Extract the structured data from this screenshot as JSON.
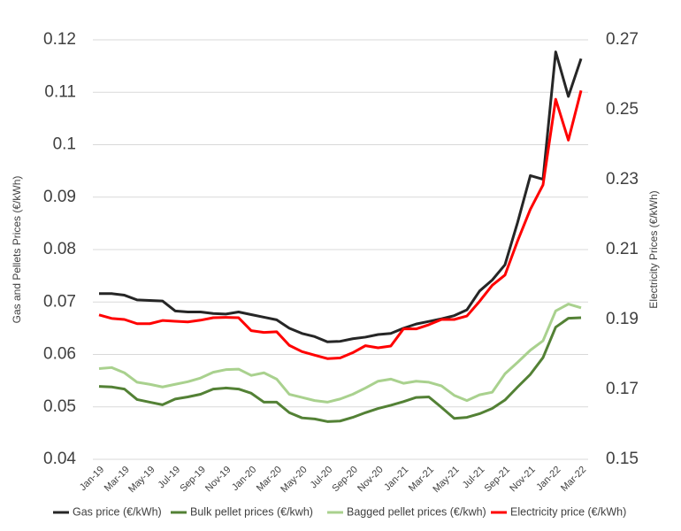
{
  "chart_data": {
    "type": "line",
    "y_label": "Gas and Pellets Prices (€/kWh)",
    "y2_label": "Electricity Prices (€/kWh)",
    "categories": [
      "Jan-19",
      null,
      "Mar-19",
      null,
      "May-19",
      null,
      "Jul-19",
      null,
      "Sep-19",
      null,
      "Nov-19",
      null,
      "Jan-20",
      null,
      "Mar-20",
      null,
      "May-20",
      null,
      "Jul-20",
      null,
      "Sep-20",
      null,
      "Nov-20",
      null,
      "Jan-21",
      null,
      "Mar-21",
      null,
      "May-21",
      null,
      "Jul-21",
      null,
      "Sep-21",
      null,
      "Nov-21",
      null,
      "Jan-22",
      null,
      "Mar-22"
    ],
    "series": [
      {
        "name": "Gas price (€/kWh)",
        "color": "#262626",
        "values": [
          0.0716,
          0.0716,
          0.0713,
          0.0704,
          0.0703,
          0.0702,
          0.0683,
          0.0681,
          0.0681,
          0.0678,
          0.0677,
          0.0681,
          0.0676,
          0.0671,
          0.0666,
          0.065,
          0.064,
          0.0634,
          0.0624,
          0.0625,
          0.063,
          0.0633,
          0.0638,
          0.064,
          0.065,
          0.0658,
          0.0663,
          0.0668,
          0.0674,
          0.0685,
          0.0721,
          0.0742,
          0.0771,
          0.0852,
          0.0941,
          0.0934,
          0.1177,
          0.1092,
          0.1164
        ]
      },
      {
        "name": "Bulk pellet prices (€/kwh)",
        "color": "#538135",
        "values": [
          0.0539,
          0.0538,
          0.0534,
          0.0514,
          0.0509,
          0.0504,
          0.0515,
          0.0519,
          0.0524,
          0.0534,
          0.0536,
          0.0534,
          0.0526,
          0.0509,
          0.0509,
          0.0489,
          0.0479,
          0.0477,
          0.0472,
          0.0473,
          0.048,
          0.0489,
          0.0497,
          0.0503,
          0.051,
          0.0518,
          0.0519,
          0.0499,
          0.0478,
          0.048,
          0.0487,
          0.0497,
          0.0513,
          0.0538,
          0.0562,
          0.0594,
          0.0652,
          0.0669,
          0.067
        ]
      },
      {
        "name": "Bagged pellet prices (€/kwh)",
        "color": "#a9d18e",
        "values": [
          0.0573,
          0.0575,
          0.0565,
          0.0547,
          0.0543,
          0.0538,
          0.0543,
          0.0548,
          0.0555,
          0.0566,
          0.0571,
          0.0572,
          0.056,
          0.0565,
          0.0553,
          0.0524,
          0.0518,
          0.0512,
          0.0509,
          0.0515,
          0.0524,
          0.0536,
          0.0549,
          0.0553,
          0.0545,
          0.0549,
          0.0547,
          0.054,
          0.0522,
          0.0512,
          0.0523,
          0.0528,
          0.0563,
          0.0585,
          0.0608,
          0.0626,
          0.0683,
          0.0696,
          0.0689
        ]
      },
      {
        "name": "Electricity price (€/kWh)",
        "color": "#ff0000",
        "axis": "y2",
        "values": [
          0.1913,
          0.1903,
          0.19,
          0.1888,
          0.1888,
          0.1897,
          0.1895,
          0.1893,
          0.1898,
          0.1905,
          0.1906,
          0.1905,
          0.1868,
          0.1863,
          0.1865,
          0.1826,
          0.1808,
          0.1798,
          0.1788,
          0.179,
          0.1805,
          0.1825,
          0.1819,
          0.1824,
          0.1873,
          0.1873,
          0.1885,
          0.19,
          0.19,
          0.191,
          0.1952,
          0.1998,
          0.2027,
          0.2125,
          0.2215,
          0.2285,
          0.253,
          0.2413,
          0.2555
        ]
      }
    ],
    "ylim": [
      0.04,
      0.12
    ],
    "yticks": [
      0.04,
      0.05,
      0.06,
      0.07,
      0.08,
      0.09,
      0.1,
      0.11,
      0.12
    ],
    "y2lim": [
      0.15,
      0.27
    ],
    "y2ticks": [
      0.15,
      0.17,
      0.19,
      0.21,
      0.23,
      0.25,
      0.27
    ],
    "grid": true,
    "legend": "bottom"
  }
}
